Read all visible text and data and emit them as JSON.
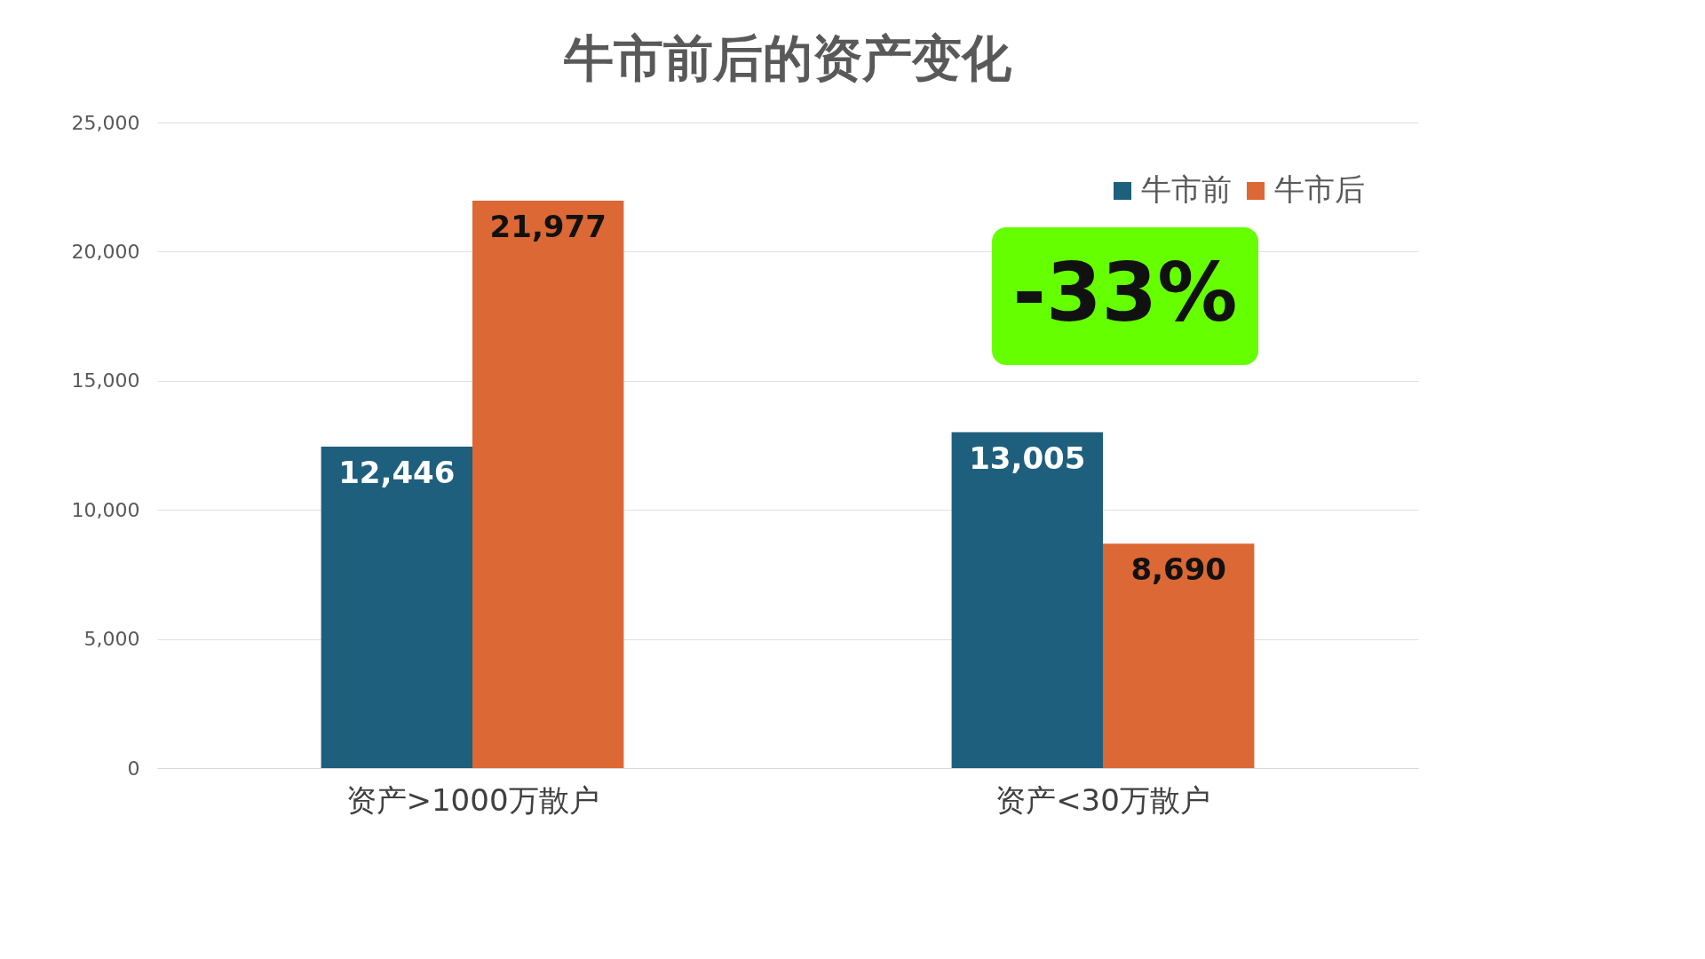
{
  "chart_data": {
    "type": "bar",
    "title": "牛市前后的资产变化",
    "categories": [
      "资产>1000万散户",
      "资产<30万散户"
    ],
    "series": [
      {
        "name": "牛市前",
        "color": "#1e5f7e",
        "values": [
          12446,
          13005
        ],
        "value_labels": [
          "12,446",
          "13,005"
        ]
      },
      {
        "name": "牛市后",
        "color": "#dc6835",
        "values": [
          21977,
          8690
        ],
        "value_labels": [
          "21,977",
          "8,690"
        ]
      }
    ],
    "ylim": [
      0,
      25000
    ],
    "yticks": [
      0,
      {
        "value": 5000,
        "label": "5,000"
      },
      {
        "value": 10000,
        "label": "10,000"
      },
      {
        "value": 15000,
        "label": "15,000"
      },
      {
        "value": 20000,
        "label": "20,000"
      },
      {
        "value": 25000,
        "label": "25,000"
      }
    ],
    "grid": "y",
    "legend": "top right",
    "annotations": [
      "-33%"
    ]
  }
}
